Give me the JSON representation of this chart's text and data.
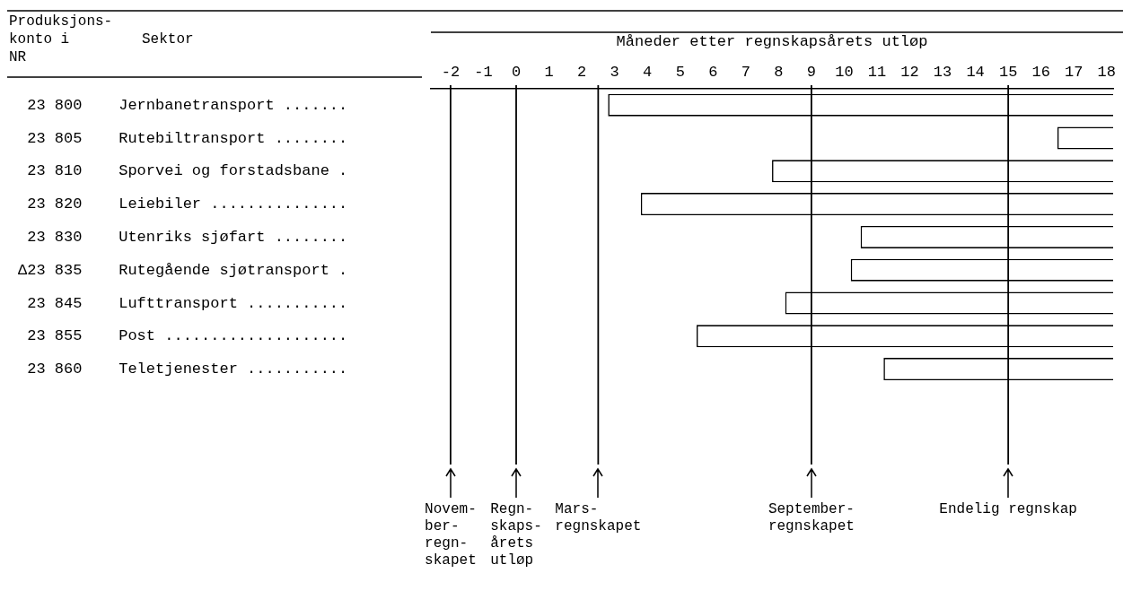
{
  "chart_data": {
    "type": "bar",
    "orientation": "horizontal",
    "xlabel": "Måneder etter regnskapsårets utløp",
    "categories": [
      " 23 800    Jernbanetransport .......",
      " 23 805    Rutebiltransport ........",
      " 23 810    Sporvei og forstadsbane .",
      " 23 820    Leiebiler ...............",
      " 23 830    Utenriks sjøfart ........",
      "Δ23 835    Rutegående sjøtransport .",
      " 23 845    Lufttransport ...........",
      " 23 855    Post ....................",
      " 23 860    Teletjenester ..........."
    ],
    "base": [
      2.8,
      16.5,
      7.8,
      3.8,
      10.5,
      10.2,
      8.2,
      5.5,
      11.2
    ],
    "values": [
      15.4,
      1.7,
      10.4,
      14.4,
      7.7,
      8,
      10,
      12.7,
      7
    ],
    "color": "#ffffff",
    "xlim": [
      -2.6,
      18.2
    ],
    "xticks": [
      -2,
      -1,
      0,
      1,
      2,
      3,
      4,
      5,
      6,
      7,
      8,
      9,
      10,
      11,
      12,
      13,
      14,
      15,
      16,
      17,
      18
    ],
    "ref_lines": [
      {
        "axis": "x",
        "value": -2,
        "label": "Novem-\nber-\nregn-\nskapet",
        "color": "#000000"
      },
      {
        "axis": "x",
        "value": 0,
        "label": "Regn-\nskaps-\nårets\nutløp",
        "color": "#000000"
      },
      {
        "axis": "x",
        "value": 2.5,
        "label": "Mars-\nregnskapet",
        "color": "#000000"
      },
      {
        "axis": "x",
        "value": 9,
        "label": "September-\nregnskapet",
        "color": "#000000"
      },
      {
        "axis": "x",
        "value": 15,
        "label": "Endelig regnskap",
        "color": "#000000"
      }
    ],
    "annotations": [
      "Produksjons-\nkonto i\nNR",
      "Sektor"
    ],
    "grid": false,
    "legend": false
  }
}
